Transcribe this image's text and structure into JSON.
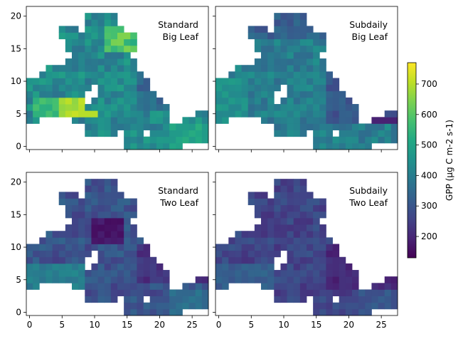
{
  "chart_data": {
    "type": "heatmap",
    "x_ticks": [
      0,
      5,
      10,
      15,
      20,
      25
    ],
    "y_ticks": [
      0,
      5,
      10,
      15,
      20
    ],
    "xlim": [
      -0.5,
      27.5
    ],
    "ylim": [
      -0.5,
      21.5
    ],
    "colorbar": {
      "label": "GPP (µg C m-2 s-1)",
      "range": [
        130,
        770
      ],
      "ticks": [
        200,
        300,
        400,
        500,
        600,
        700
      ],
      "colormap": "viridis"
    },
    "panels": [
      {
        "title_lines": [
          "Standard",
          "Big Leaf"
        ],
        "sample_values": {
          "bright_region_x2_8_y5_7": 650,
          "mean": 470
        }
      },
      {
        "title_lines": [
          "Subdaily",
          "Big Leaf"
        ],
        "sample_values": {
          "mean": 390
        }
      },
      {
        "title_lines": [
          "Standard",
          "Two Leaf"
        ],
        "sample_values": {
          "mean": 280
        }
      },
      {
        "title_lines": [
          "Subdaily",
          "Two Leaf"
        ],
        "sample_values": {
          "mean": 250
        }
      }
    ]
  }
}
